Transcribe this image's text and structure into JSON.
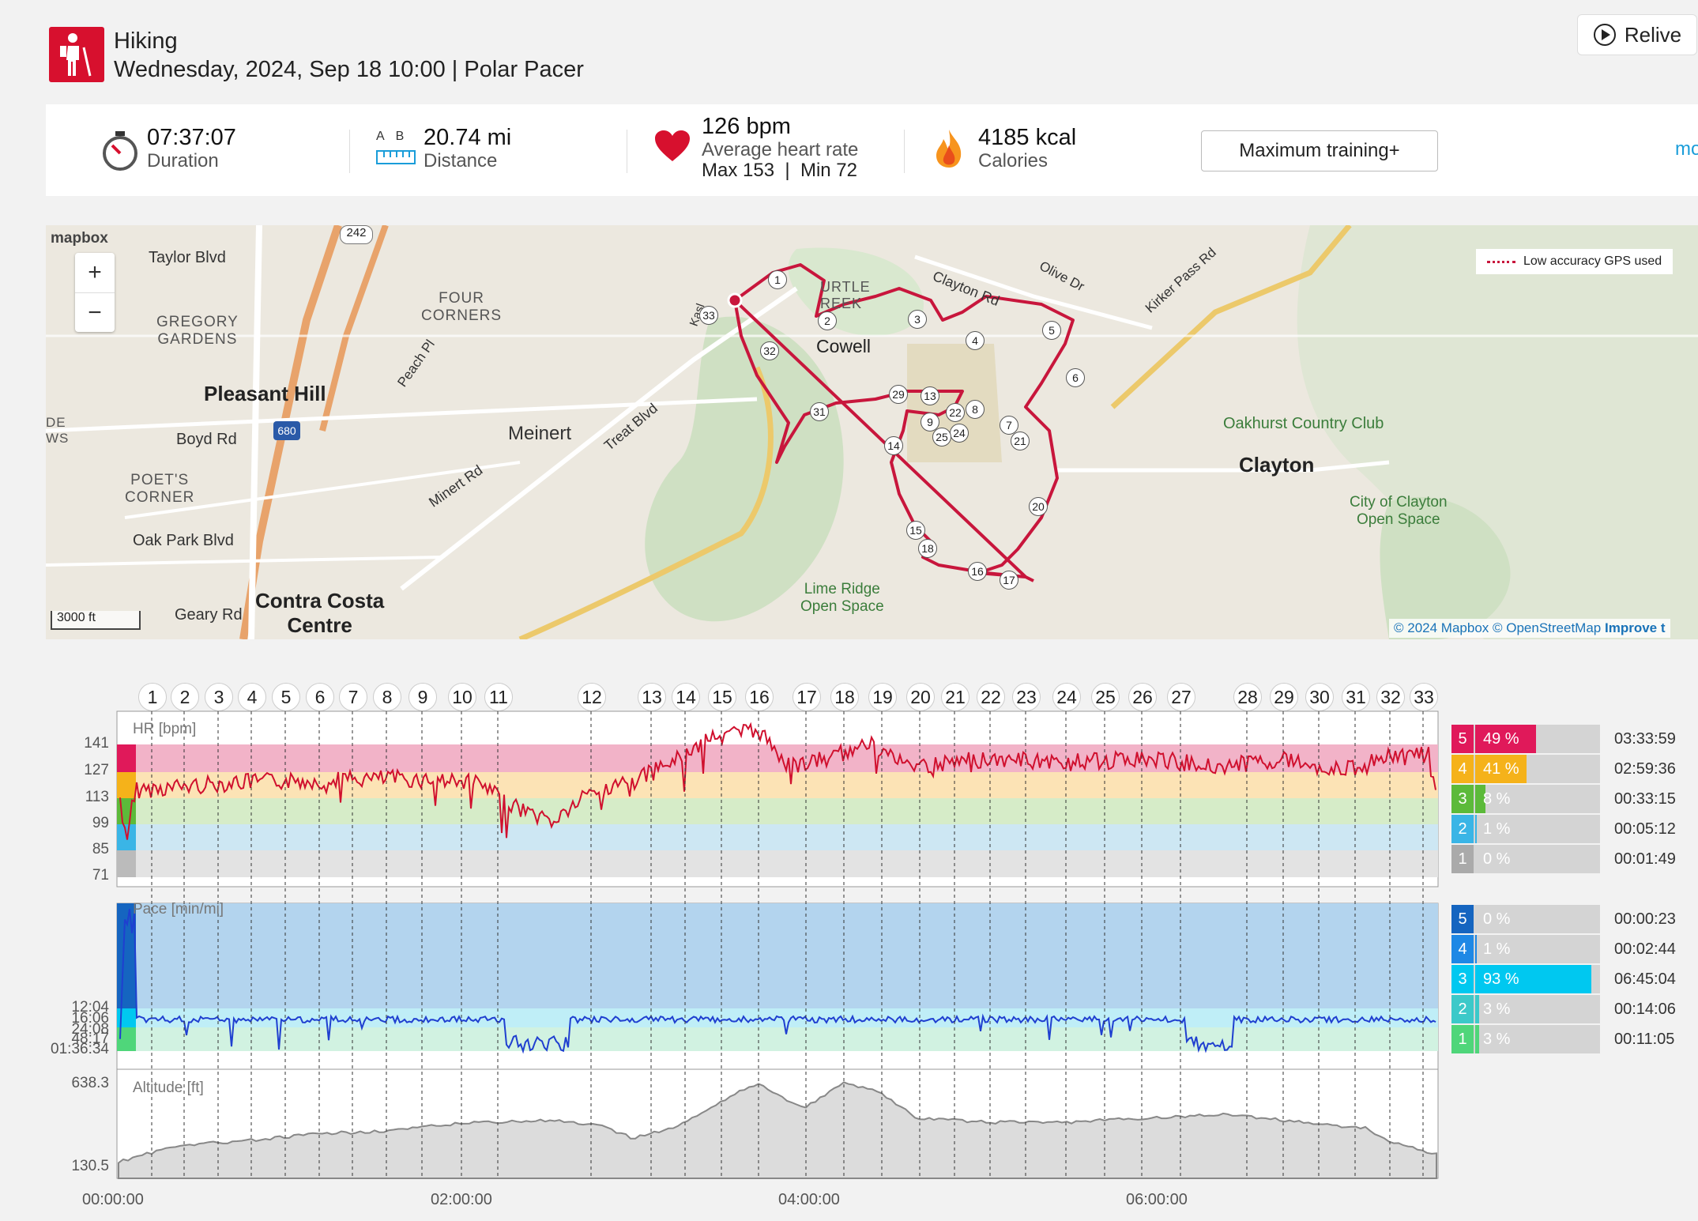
{
  "header": {
    "sport": "Hiking",
    "date_device": "Wednesday, 2024, Sep 18 10:00 | Polar Pacer",
    "relive_label": "Relive"
  },
  "summary": {
    "duration": "07:37:07",
    "duration_label": "Duration",
    "distance": "20.74 mi",
    "distance_label": "Distance",
    "ab_a": "A",
    "ab_b": "B",
    "heart_rate": "126 bpm",
    "heart_rate_label": "Average heart rate",
    "hr_max_min": "Max 153  |  Min 72",
    "calories": "4185 kcal",
    "calories_label": "Calories",
    "training_button": "Maximum training+",
    "more_link": "mo"
  },
  "map": {
    "logo": "mapbox",
    "legend": "Low accuracy GPS used",
    "scale": "3000 ft",
    "attribution": "© 2024 Mapbox © OpenStreetMap",
    "improve": "Improve t",
    "labels": {
      "taylor": "Taylor Blvd",
      "gregory": "GREGORY\nGARDENS",
      "four_corners": "FOUR\nCORNERS",
      "pleasant_hill": "Pleasant Hill",
      "boyd": "Boyd Rd",
      "poets": "POET'S\nCORNER",
      "oak_park": "Oak Park Blvd",
      "geary": "Geary Rd",
      "contra_costa": "Contra Costa\nCentre",
      "meinert": "Meinert",
      "minert": "Minert Rd",
      "treat": "Treat Blvd",
      "peach": "Peach Pl",
      "cowell": "Cowell",
      "turtle": "URTLE\nREEK",
      "clayton_rd": "Clayton Rd",
      "olive": "Olive Dr",
      "kirker": "Kirker Pass Rd",
      "oakhurst": "Oakhurst Country Club",
      "clayton": "Clayton",
      "city_clayton": "City of Clayton\nOpen Space",
      "lime_ridge": "Lime Ridge\nOpen Space",
      "kasl": "Kasl",
      "hwy242": "242",
      "hwy680": "680",
      "de": "DE\nWS"
    }
  },
  "laps": [
    "1",
    "2",
    "3",
    "4",
    "5",
    "6",
    "7",
    "8",
    "9",
    "10",
    "11",
    "12",
    "13",
    "14",
    "15",
    "16",
    "17",
    "18",
    "19",
    "20",
    "21",
    "22",
    "23",
    "24",
    "25",
    "26",
    "27",
    "28",
    "29",
    "30",
    "31",
    "32",
    "33"
  ],
  "hr_chart": {
    "title": "HR [bpm]",
    "ticks": [
      "141",
      "127",
      "113",
      "99",
      "85",
      "71"
    ],
    "zones": [
      {
        "zone": "5",
        "pct": "49 %",
        "fraction": 0.49,
        "time": "03:33:59",
        "color": "#e0195a"
      },
      {
        "zone": "4",
        "pct": "41 %",
        "fraction": 0.41,
        "time": "02:59:36",
        "color": "#f5b21a"
      },
      {
        "zone": "3",
        "pct": "8 %",
        "fraction": 0.08,
        "time": "00:33:15",
        "color": "#5cba3a"
      },
      {
        "zone": "2",
        "pct": "1 %",
        "fraction": 0.01,
        "time": "00:05:12",
        "color": "#3ab5e6"
      },
      {
        "zone": "1",
        "pct": "0 %",
        "fraction": 0.0,
        "time": "00:01:49",
        "color": "#aaaaaa"
      }
    ]
  },
  "pace_chart": {
    "title": "Pace [min/mi]",
    "ticks": [
      "12:04",
      "16:06",
      "24:08",
      "48:17",
      "01:36:34"
    ],
    "zones": [
      {
        "zone": "5",
        "pct": "0 %",
        "fraction": 0.0,
        "time": "00:00:23",
        "color": "#1565c0"
      },
      {
        "zone": "4",
        "pct": "1 %",
        "fraction": 0.01,
        "time": "00:02:44",
        "color": "#1e88e5"
      },
      {
        "zone": "3",
        "pct": "93 %",
        "fraction": 0.93,
        "time": "06:45:04",
        "color": "#00c8f0"
      },
      {
        "zone": "2",
        "pct": "3 %",
        "fraction": 0.03,
        "time": "00:14:06",
        "color": "#3cc9c9"
      },
      {
        "zone": "1",
        "pct": "3 %",
        "fraction": 0.03,
        "time": "00:11:05",
        "color": "#4fd67a"
      }
    ]
  },
  "altitude_chart": {
    "title": "Altitude [ft]",
    "ticks": [
      "638.3",
      "130.5"
    ]
  },
  "time_axis": [
    "00:00:00",
    "02:00:00",
    "04:00:00",
    "06:00:00"
  ]
}
